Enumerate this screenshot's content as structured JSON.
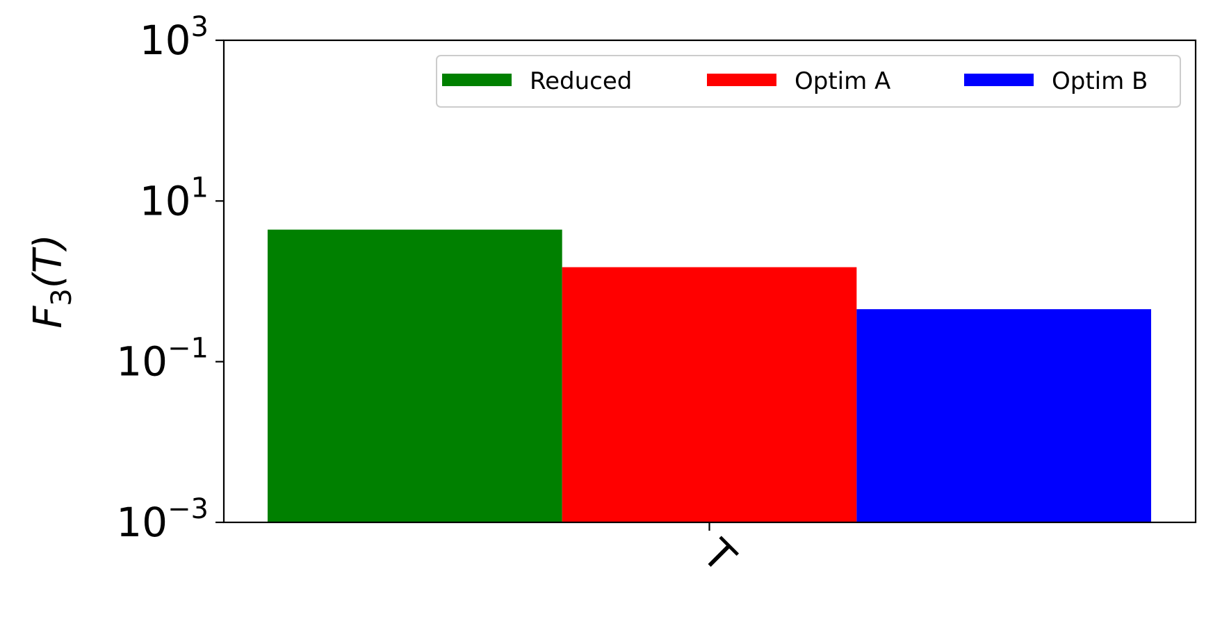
{
  "chart_data": {
    "type": "bar",
    "categories": [
      "T"
    ],
    "series": [
      {
        "name": "Reduced",
        "values": [
          4.4
        ],
        "color": "#008000"
      },
      {
        "name": "Optim A",
        "values": [
          1.5
        ],
        "color": "#ff0000"
      },
      {
        "name": "Optim B",
        "values": [
          0.45
        ],
        "color": "#0000ff"
      }
    ],
    "title": "",
    "xlabel": "",
    "ylabel": {
      "main": "F",
      "sub": "3",
      "arg": "(T)"
    },
    "yscale": "log",
    "ylim": [
      0.001,
      1000
    ],
    "yticks": [
      {
        "base": "10",
        "exp": "−3",
        "value": 0.001
      },
      {
        "base": "10",
        "exp": "−1",
        "value": 0.1
      },
      {
        "base": "10",
        "exp": "1",
        "value": 10
      },
      {
        "base": "10",
        "exp": "3",
        "value": 1000
      }
    ],
    "xtick_rotation": 45,
    "legend": {
      "placement": "top-right",
      "columns": 3
    },
    "grid": false
  }
}
